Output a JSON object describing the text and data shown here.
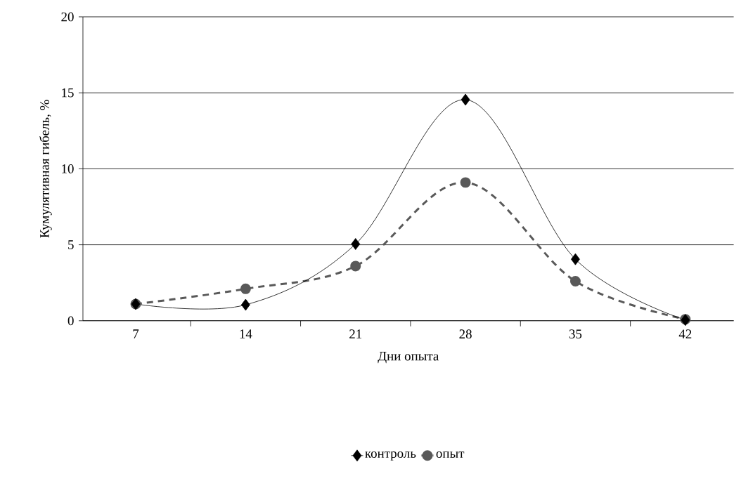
{
  "chart_data": {
    "type": "line",
    "xlabel": "Дни опыта",
    "ylabel": "Кумулятивная гибель, %",
    "categories": [
      "7",
      "14",
      "21",
      "28",
      "35",
      "42"
    ],
    "series": [
      {
        "name": "контроль",
        "color": "#000000",
        "marker": "diamond",
        "line_style": "solid",
        "values": [
          1.1,
          1.05,
          5.05,
          14.55,
          4.05,
          0.05
        ]
      },
      {
        "name": "опыт",
        "color": "#595959",
        "marker": "circle",
        "line_style": "dashed",
        "values": [
          1.1,
          2.1,
          3.6,
          9.1,
          2.6,
          0.1
        ]
      }
    ],
    "ylim": [
      0,
      20
    ],
    "yticks": [
      0,
      5,
      10,
      15,
      20
    ],
    "grid": "y",
    "legend": "bottom"
  }
}
